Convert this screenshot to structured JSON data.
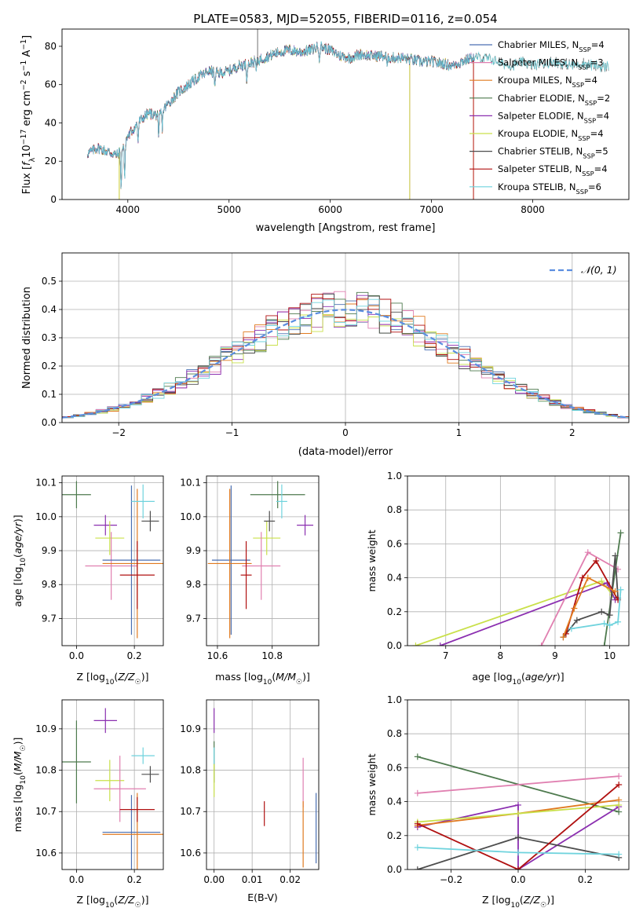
{
  "title": "PLATE=0583, MJD=52055, FIBERID=0116, z=0.054",
  "colors": {
    "cm": "#4a6fb2",
    "sm": "#e07fb0",
    "km": "#e07a1f",
    "ce": "#4e7a4e",
    "se": "#8b2fb0",
    "ke": "#c9e04a",
    "cs": "#4d4d4d",
    "ss": "#b01010",
    "ks": "#6fd3dd",
    "gauss": "#5b8ee0",
    "grid": "#b0b0b0"
  },
  "panels": {
    "spectrum": {
      "xlabel": "wavelength [Angstrom, rest frame]",
      "ylabel": "Flux [f_λ10^-17 erg cm^-2 s^-1 A^-1]",
      "xticks": [
        "4000",
        "5000",
        "6000",
        "7000",
        "8000"
      ],
      "yticks": [
        "0",
        "20",
        "40",
        "60",
        "80"
      ]
    },
    "hist": {
      "xlabel": "(data-model)/error",
      "ylabel": "Normed distribution",
      "xticks": [
        "−2",
        "−1",
        "0",
        "1",
        "2"
      ],
      "yticks": [
        "0.0",
        "0.1",
        "0.2",
        "0.3",
        "0.4",
        "0.5"
      ],
      "gauss_label": "𝒩(0, 1)"
    },
    "age_Z": {
      "xlabel": "Z [log10(Z/Z☉)]",
      "ylabel": "age  [log10(age/yr)]"
    },
    "age_mass": {
      "xlabel": "mass [log10(M/M☉)]"
    },
    "mw_age": {
      "xlabel": "age  [log10(age/yr)]",
      "ylabel": "mass weight"
    },
    "mass_Z": {
      "xlabel": "Z [log10(Z/Z☉)]",
      "ylabel": "mass [log10(M/M☉)]"
    },
    "mass_ebv": {
      "xlabel": "E(B-V)"
    },
    "mw_Z": {
      "xlabel": "Z [log10(Z/Z☉)]",
      "ylabel": "mass weight"
    }
  },
  "chart_data": [
    {
      "type": "line",
      "name": "spectrum",
      "xlim": [
        3350,
        8950
      ],
      "ylim": [
        0,
        89
      ],
      "legend_position": "upper right",
      "series": [
        {
          "key": "cm",
          "lib": "Chabrier MILES",
          "nssp": "4"
        },
        {
          "key": "sm",
          "lib": "Salpeter MILES",
          "nssp": "3"
        },
        {
          "key": "km",
          "lib": "Kroupa MILES",
          "nssp": "4"
        },
        {
          "key": "ce",
          "lib": "Chabrier ELODIE",
          "nssp": "2"
        },
        {
          "key": "se",
          "lib": "Salpeter ELODIE",
          "nssp": "4"
        },
        {
          "key": "ke",
          "lib": "Kroupa ELODIE",
          "nssp": "4"
        },
        {
          "key": "cs",
          "lib": "Chabrier STELIB",
          "nssp": "5"
        },
        {
          "key": "ss",
          "lib": "Salpeter STELIB",
          "nssp": "4"
        },
        {
          "key": "ks",
          "lib": "Kroupa STELIB",
          "nssp": "6"
        }
      ],
      "continuum": [
        [
          3600,
          24
        ],
        [
          3700,
          27
        ],
        [
          3800,
          25
        ],
        [
          3900,
          23
        ],
        [
          3950,
          28
        ],
        [
          4000,
          33
        ],
        [
          4100,
          40
        ],
        [
          4200,
          45
        ],
        [
          4300,
          44
        ],
        [
          4400,
          50
        ],
        [
          4500,
          56
        ],
        [
          4600,
          60
        ],
        [
          4700,
          64
        ],
        [
          4800,
          67
        ],
        [
          4900,
          66
        ],
        [
          5000,
          67
        ],
        [
          5100,
          70
        ],
        [
          5200,
          71
        ],
        [
          5300,
          73
        ],
        [
          5400,
          75
        ],
        [
          5500,
          77
        ],
        [
          5600,
          78
        ],
        [
          5700,
          77
        ],
        [
          5800,
          78
        ],
        [
          5900,
          80
        ],
        [
          6000,
          78
        ],
        [
          6100,
          75
        ],
        [
          6200,
          74
        ],
        [
          6300,
          76
        ],
        [
          6400,
          75
        ],
        [
          6500,
          75
        ],
        [
          6600,
          74
        ],
        [
          6700,
          74
        ],
        [
          6800,
          73
        ],
        [
          6900,
          72
        ],
        [
          7000,
          72
        ],
        [
          7100,
          71
        ],
        [
          7200,
          70
        ],
        [
          7300,
          72
        ],
        [
          7400,
          74
        ],
        [
          7500,
          74
        ],
        [
          7600,
          73
        ],
        [
          7700,
          71
        ],
        [
          7800,
          70
        ],
        [
          7900,
          72
        ],
        [
          8000,
          70
        ],
        [
          8100,
          71
        ],
        [
          8200,
          72
        ],
        [
          8300,
          71
        ],
        [
          8400,
          70
        ],
        [
          8500,
          71
        ],
        [
          8600,
          70
        ],
        [
          8700,
          69
        ],
        [
          8750,
          70
        ]
      ],
      "absorption": [
        [
          3934,
          22
        ],
        [
          3969,
          20
        ],
        [
          4101,
          10
        ],
        [
          4304,
          14
        ],
        [
          4340,
          9
        ],
        [
          4861,
          8
        ],
        [
          5175,
          8
        ],
        [
          5270,
          5
        ],
        [
          5893,
          6
        ],
        [
          6563,
          6
        ]
      ]
    },
    {
      "type": "histogram",
      "name": "residuals",
      "xlim": [
        -2.5,
        2.5
      ],
      "ylim": [
        0,
        0.6
      ],
      "legend_position": "upper right",
      "bin_width": 0.1,
      "gaussian": {
        "mu": 0,
        "sigma": 1
      }
    },
    {
      "type": "scatter",
      "name": "age_vs_Z",
      "xlim": [
        -0.05,
        0.3
      ],
      "ylim": [
        9.62,
        10.12
      ],
      "xticks": [
        0.0,
        0.2
      ],
      "yticks": [
        9.7,
        9.8,
        9.9,
        10.0,
        10.1
      ],
      "points": [
        {
          "k": "ce",
          "x": 0.0,
          "y": 10.065,
          "ex": 0.05,
          "ey": 0.04
        },
        {
          "k": "se",
          "x": 0.1,
          "y": 9.975,
          "ex": 0.04,
          "ey": 0.03
        },
        {
          "k": "ke",
          "x": 0.115,
          "y": 9.937,
          "ex": 0.05,
          "ey": 0.05
        },
        {
          "k": "sm",
          "x": 0.12,
          "y": 9.855,
          "ex": 0.09,
          "ey": 0.1
        },
        {
          "k": "cm",
          "x": 0.19,
          "y": 9.872,
          "ex": 0.1,
          "ey": 0.22
        },
        {
          "k": "km",
          "x": 0.21,
          "y": 9.862,
          "ex": 0.12,
          "ey": 0.22
        },
        {
          "k": "ss",
          "x": 0.21,
          "y": 9.828,
          "ex": 0.06,
          "ey": 0.1
        },
        {
          "k": "ks",
          "x": 0.23,
          "y": 10.045,
          "ex": 0.04,
          "ey": 0.05
        },
        {
          "k": "cs",
          "x": 0.255,
          "y": 9.987,
          "ex": 0.03,
          "ey": 0.03
        }
      ]
    },
    {
      "type": "scatter",
      "name": "age_vs_mass",
      "xlim": [
        10.56,
        10.97
      ],
      "ylim": [
        9.62,
        10.12
      ],
      "xticks": [
        10.6,
        10.8
      ],
      "yticks": [
        9.7,
        9.8,
        9.9,
        10.0,
        10.1
      ],
      "points": [
        {
          "k": "ce",
          "x": 10.82,
          "y": 10.065,
          "ex": 0.1,
          "ey": 0.04
        },
        {
          "k": "se",
          "x": 10.92,
          "y": 9.975,
          "ex": 0.03,
          "ey": 0.03
        },
        {
          "k": "ke",
          "x": 10.78,
          "y": 9.937,
          "ex": 0.05,
          "ey": 0.05
        },
        {
          "k": "sm",
          "x": 10.76,
          "y": 9.855,
          "ex": 0.07,
          "ey": 0.1
        },
        {
          "k": "cm",
          "x": 10.65,
          "y": 9.872,
          "ex": 0.07,
          "ey": 0.22
        },
        {
          "k": "km",
          "x": 10.645,
          "y": 9.862,
          "ex": 0.08,
          "ey": 0.22
        },
        {
          "k": "ss",
          "x": 10.705,
          "y": 9.828,
          "ex": 0.02,
          "ey": 0.1
        },
        {
          "k": "ks",
          "x": 10.835,
          "y": 10.045,
          "ex": 0.02,
          "ey": 0.05
        },
        {
          "k": "cs",
          "x": 10.79,
          "y": 9.987,
          "ex": 0.02,
          "ey": 0.03
        }
      ]
    },
    {
      "type": "line",
      "name": "mass_weight_vs_age",
      "xlim": [
        6.3,
        10.35
      ],
      "ylim": [
        0,
        1.0
      ],
      "xticks": [
        7,
        8,
        9,
        10
      ],
      "yticks": [
        0.0,
        0.2,
        0.4,
        0.6,
        0.8,
        1.0
      ],
      "series": [
        {
          "k": "ke",
          "pts": [
            [
              6.45,
              0.0
            ],
            [
              9.85,
              0.38
            ],
            [
              10.05,
              0.3
            ]
          ]
        },
        {
          "k": "se",
          "pts": [
            [
              6.9,
              0.0
            ],
            [
              9.95,
              0.37
            ],
            [
              10.1,
              0.27
            ]
          ]
        },
        {
          "k": "sm",
          "pts": [
            [
              8.75,
              0.0
            ],
            [
              9.6,
              0.55
            ],
            [
              10.15,
              0.45
            ]
          ]
        },
        {
          "k": "ce",
          "pts": [
            [
              9.9,
              0.0
            ],
            [
              10.2,
              0.665
            ]
          ]
        },
        {
          "k": "cs",
          "pts": [
            [
              9.15,
              0.05
            ],
            [
              9.4,
              0.15
            ],
            [
              9.85,
              0.2
            ],
            [
              10.0,
              0.18
            ],
            [
              10.1,
              0.53
            ],
            [
              10.15,
              0.28
            ]
          ]
        },
        {
          "k": "ss",
          "pts": [
            [
              9.2,
              0.07
            ],
            [
              9.5,
              0.4
            ],
            [
              9.75,
              0.5
            ],
            [
              10.15,
              0.27
            ]
          ]
        },
        {
          "k": "km",
          "pts": [
            [
              9.15,
              0.05
            ],
            [
              9.35,
              0.22
            ],
            [
              9.6,
              0.4
            ],
            [
              10.1,
              0.32
            ]
          ]
        },
        {
          "k": "ks",
          "pts": [
            [
              9.3,
              0.1
            ],
            [
              9.9,
              0.13
            ],
            [
              10.0,
              0.12
            ],
            [
              10.15,
              0.14
            ],
            [
              10.2,
              0.33
            ]
          ]
        }
      ]
    },
    {
      "type": "scatter",
      "name": "mass_vs_Z",
      "xlim": [
        -0.05,
        0.3
      ],
      "ylim": [
        10.56,
        10.97
      ],
      "xticks": [
        0.0,
        0.2
      ],
      "yticks": [
        10.6,
        10.7,
        10.8,
        10.9
      ],
      "points": [
        {
          "k": "ce",
          "x": 0.0,
          "y": 10.82,
          "ex": 0.05,
          "ey": 0.1
        },
        {
          "k": "se",
          "x": 0.1,
          "y": 10.92,
          "ex": 0.04,
          "ey": 0.03
        },
        {
          "k": "ke",
          "x": 0.115,
          "y": 10.775,
          "ex": 0.05,
          "ey": 0.05
        },
        {
          "k": "sm",
          "x": 0.15,
          "y": 10.755,
          "ex": 0.09,
          "ey": 0.08
        },
        {
          "k": "cm",
          "x": 0.19,
          "y": 10.65,
          "ex": 0.1,
          "ey": 0.09
        },
        {
          "k": "km",
          "x": 0.21,
          "y": 10.645,
          "ex": 0.12,
          "ey": 0.1
        },
        {
          "k": "ss",
          "x": 0.21,
          "y": 10.705,
          "ex": 0.06,
          "ey": 0.03
        },
        {
          "k": "ks",
          "x": 0.23,
          "y": 10.835,
          "ex": 0.04,
          "ey": 0.02
        },
        {
          "k": "cs",
          "x": 0.255,
          "y": 10.79,
          "ex": 0.03,
          "ey": 0.02
        }
      ]
    },
    {
      "type": "scatter",
      "name": "mass_vs_ebv",
      "xlim": [
        -0.002,
        0.0275
      ],
      "ylim": [
        10.56,
        10.97
      ],
      "xticks": [
        0.0,
        0.01,
        0.02
      ],
      "yticks": [
        10.6,
        10.7,
        10.8,
        10.9
      ],
      "points": [
        {
          "k": "se",
          "x": 0.0,
          "y": 10.92,
          "ex": 0.0,
          "ey": 0.03
        },
        {
          "k": "ce",
          "x": 0.0,
          "y": 10.82,
          "ex": 0.0,
          "ey": 0.05
        },
        {
          "k": "ke",
          "x": 0.0,
          "y": 10.775,
          "ex": 0.0,
          "ey": 0.04
        },
        {
          "k": "ks",
          "x": 0.0,
          "y": 10.835,
          "ex": 0.0,
          "ey": 0.02
        },
        {
          "k": "ss",
          "x": 0.0132,
          "y": 10.695,
          "ex": 0.0,
          "ey": 0.03
        },
        {
          "k": "sm",
          "x": 0.0234,
          "y": 10.77,
          "ex": 0.0,
          "ey": 0.06
        },
        {
          "k": "km",
          "x": 0.0234,
          "y": 10.645,
          "ex": 0.0,
          "ey": 0.08
        },
        {
          "k": "cm",
          "x": 0.0268,
          "y": 10.66,
          "ex": 0.0,
          "ey": 0.085
        }
      ]
    },
    {
      "type": "line",
      "name": "mass_weight_vs_Z",
      "xlim": [
        -0.33,
        0.33
      ],
      "ylim": [
        0,
        1.0
      ],
      "xticks": [
        -0.2,
        0.0,
        0.2
      ],
      "yticks": [
        0.0,
        0.2,
        0.4,
        0.6,
        0.8,
        1.0
      ],
      "series": [
        {
          "k": "ce",
          "pts": [
            [
              -0.3,
              0.665
            ],
            [
              0.3,
              0.34
            ]
          ]
        },
        {
          "k": "sm",
          "pts": [
            [
              -0.3,
              0.45
            ],
            [
              0.3,
              0.55
            ]
          ]
        },
        {
          "k": "se",
          "pts": [
            [
              -0.3,
              0.25
            ],
            [
              0.0,
              0.38
            ],
            [
              0.0,
              0.0
            ],
            [
              0.3,
              0.37
            ]
          ]
        },
        {
          "k": "km",
          "pts": [
            [
              -0.3,
              0.26
            ],
            [
              0.0,
              0.33
            ],
            [
              0.3,
              0.41
            ]
          ]
        },
        {
          "k": "ke",
          "pts": [
            [
              -0.3,
              0.28
            ],
            [
              0.0,
              0.33
            ],
            [
              0.3,
              0.38
            ]
          ]
        },
        {
          "k": "cs",
          "pts": [
            [
              -0.3,
              0.0
            ],
            [
              0.0,
              0.19
            ],
            [
              0.3,
              0.07
            ]
          ]
        },
        {
          "k": "ss",
          "pts": [
            [
              -0.3,
              0.27
            ],
            [
              0.0,
              0.0
            ],
            [
              0.3,
              0.5
            ]
          ]
        },
        {
          "k": "ks",
          "pts": [
            [
              -0.3,
              0.13
            ],
            [
              0.0,
              0.1
            ],
            [
              0.3,
              0.09
            ]
          ]
        }
      ]
    }
  ]
}
